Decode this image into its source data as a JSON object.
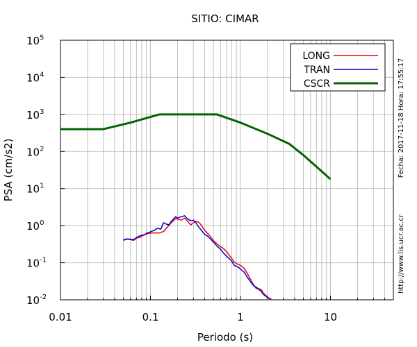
{
  "chart_data": {
    "type": "line",
    "title": "SITIO: CIMAR",
    "xlabel": "Periodo (s)",
    "ylabel": "PSA (cm/s2)",
    "x_scale": "log",
    "y_scale": "log",
    "xlim": [
      0.01,
      50
    ],
    "ylim": [
      0.01,
      100000
    ],
    "grid": true,
    "legend_position": "top-right",
    "x_ticks": [
      {
        "value": 0.01,
        "label": "0.01"
      },
      {
        "value": 0.1,
        "label": "0.1"
      },
      {
        "value": 1,
        "label": "1"
      },
      {
        "value": 10,
        "label": "10"
      }
    ],
    "y_ticks": [
      {
        "value": 0.01,
        "base": "10",
        "exp": "-2"
      },
      {
        "value": 0.1,
        "base": "10",
        "exp": "-1"
      },
      {
        "value": 1,
        "base": "10",
        "exp": "0"
      },
      {
        "value": 10,
        "base": "10",
        "exp": "1"
      },
      {
        "value": 100,
        "base": "10",
        "exp": "2"
      },
      {
        "value": 1000,
        "base": "10",
        "exp": "3"
      },
      {
        "value": 10000,
        "base": "10",
        "exp": "4"
      },
      {
        "value": 100000,
        "base": "10",
        "exp": "5"
      }
    ],
    "series": [
      {
        "name": "LONG",
        "color": "#e8000b",
        "width": 1.5,
        "points": [
          [
            0.05,
            0.4
          ],
          [
            0.055,
            0.43
          ],
          [
            0.06,
            0.42
          ],
          [
            0.065,
            0.4
          ],
          [
            0.07,
            0.46
          ],
          [
            0.075,
            0.48
          ],
          [
            0.08,
            0.52
          ],
          [
            0.085,
            0.56
          ],
          [
            0.09,
            0.6
          ],
          [
            0.1,
            0.63
          ],
          [
            0.11,
            0.64
          ],
          [
            0.12,
            0.63
          ],
          [
            0.13,
            0.65
          ],
          [
            0.14,
            0.7
          ],
          [
            0.15,
            0.85
          ],
          [
            0.16,
            1.0
          ],
          [
            0.17,
            1.2
          ],
          [
            0.18,
            1.35
          ],
          [
            0.19,
            1.55
          ],
          [
            0.2,
            1.5
          ],
          [
            0.22,
            1.4
          ],
          [
            0.24,
            1.6
          ],
          [
            0.26,
            1.3
          ],
          [
            0.28,
            1.05
          ],
          [
            0.3,
            1.2
          ],
          [
            0.32,
            1.3
          ],
          [
            0.34,
            1.25
          ],
          [
            0.36,
            1.1
          ],
          [
            0.38,
            0.9
          ],
          [
            0.4,
            0.75
          ],
          [
            0.43,
            0.62
          ],
          [
            0.46,
            0.52
          ],
          [
            0.5,
            0.4
          ],
          [
            0.55,
            0.32
          ],
          [
            0.6,
            0.27
          ],
          [
            0.65,
            0.24
          ],
          [
            0.7,
            0.2
          ],
          [
            0.75,
            0.16
          ],
          [
            0.8,
            0.13
          ],
          [
            0.85,
            0.105
          ],
          [
            0.9,
            0.095
          ],
          [
            0.95,
            0.09
          ],
          [
            1.0,
            0.085
          ],
          [
            1.1,
            0.07
          ],
          [
            1.2,
            0.05
          ],
          [
            1.3,
            0.035
          ],
          [
            1.4,
            0.025
          ],
          [
            1.5,
            0.02
          ],
          [
            1.6,
            0.02
          ],
          [
            1.7,
            0.019
          ],
          [
            1.8,
            0.015
          ],
          [
            2.0,
            0.012
          ],
          [
            2.2,
            0.01
          ]
        ]
      },
      {
        "name": "TRAN",
        "color": "#0000cc",
        "width": 1.5,
        "points": [
          [
            0.05,
            0.42
          ],
          [
            0.055,
            0.44
          ],
          [
            0.06,
            0.43
          ],
          [
            0.065,
            0.42
          ],
          [
            0.07,
            0.48
          ],
          [
            0.075,
            0.52
          ],
          [
            0.08,
            0.55
          ],
          [
            0.085,
            0.57
          ],
          [
            0.09,
            0.62
          ],
          [
            0.1,
            0.68
          ],
          [
            0.11,
            0.75
          ],
          [
            0.12,
            0.85
          ],
          [
            0.13,
            0.8
          ],
          [
            0.14,
            1.2
          ],
          [
            0.15,
            1.1
          ],
          [
            0.16,
            1.05
          ],
          [
            0.17,
            1.3
          ],
          [
            0.18,
            1.5
          ],
          [
            0.19,
            1.75
          ],
          [
            0.2,
            1.6
          ],
          [
            0.22,
            1.75
          ],
          [
            0.24,
            1.85
          ],
          [
            0.26,
            1.5
          ],
          [
            0.28,
            1.35
          ],
          [
            0.3,
            1.4
          ],
          [
            0.32,
            1.2
          ],
          [
            0.34,
            0.95
          ],
          [
            0.36,
            0.8
          ],
          [
            0.38,
            0.68
          ],
          [
            0.4,
            0.58
          ],
          [
            0.43,
            0.53
          ],
          [
            0.46,
            0.45
          ],
          [
            0.5,
            0.36
          ],
          [
            0.55,
            0.28
          ],
          [
            0.6,
            0.23
          ],
          [
            0.65,
            0.18
          ],
          [
            0.7,
            0.15
          ],
          [
            0.75,
            0.13
          ],
          [
            0.8,
            0.11
          ],
          [
            0.85,
            0.085
          ],
          [
            0.9,
            0.08
          ],
          [
            0.95,
            0.075
          ],
          [
            1.0,
            0.068
          ],
          [
            1.1,
            0.055
          ],
          [
            1.2,
            0.04
          ],
          [
            1.3,
            0.03
          ],
          [
            1.4,
            0.024
          ],
          [
            1.5,
            0.022
          ],
          [
            1.6,
            0.019
          ],
          [
            1.7,
            0.017
          ],
          [
            1.8,
            0.014
          ],
          [
            2.0,
            0.0115
          ],
          [
            2.2,
            0.0105
          ]
        ]
      },
      {
        "name": "CSCR",
        "color": "#006400",
        "width": 3,
        "points": [
          [
            0.01,
            400
          ],
          [
            0.03,
            400
          ],
          [
            0.06,
            600
          ],
          [
            0.125,
            1000
          ],
          [
            0.55,
            1000
          ],
          [
            1.0,
            600
          ],
          [
            2.0,
            300
          ],
          [
            3.5,
            160
          ],
          [
            5.0,
            80
          ],
          [
            10.0,
            18
          ]
        ]
      }
    ],
    "side_text": [
      "Fecha: 2017-11-18 Hora: 17:55:17",
      "http://www.lis.ucr.ac.cr"
    ]
  }
}
